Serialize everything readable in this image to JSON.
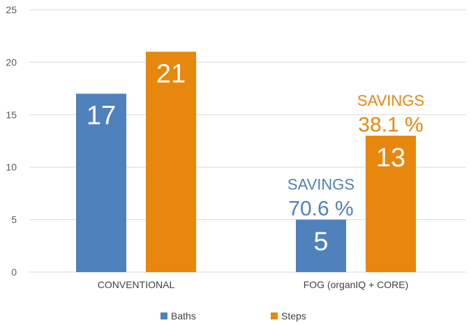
{
  "colors": {
    "baths": "#4f81bd",
    "steps": "#e8870e",
    "grid": "#d9d9d9"
  },
  "chart_data": {
    "type": "bar",
    "categories": [
      "CONVENTIONAL",
      "FOG (organIQ + CORE)"
    ],
    "series": [
      {
        "name": "Baths",
        "values": [
          17,
          5
        ]
      },
      {
        "name": "Steps",
        "values": [
          21,
          13
        ]
      }
    ],
    "ylim": [
      0,
      25
    ],
    "yticks": [
      "0",
      "5",
      "10",
      "15",
      "20",
      "25"
    ],
    "grid": true,
    "legend": "bottom-center",
    "annotations": [
      {
        "series": "Baths",
        "category": "FOG (organIQ + CORE)",
        "label": "SAVINGS",
        "value": "70.6 %"
      },
      {
        "series": "Steps",
        "category": "FOG (organIQ + CORE)",
        "label": "SAVINGS",
        "value": "38.1 %"
      }
    ]
  }
}
